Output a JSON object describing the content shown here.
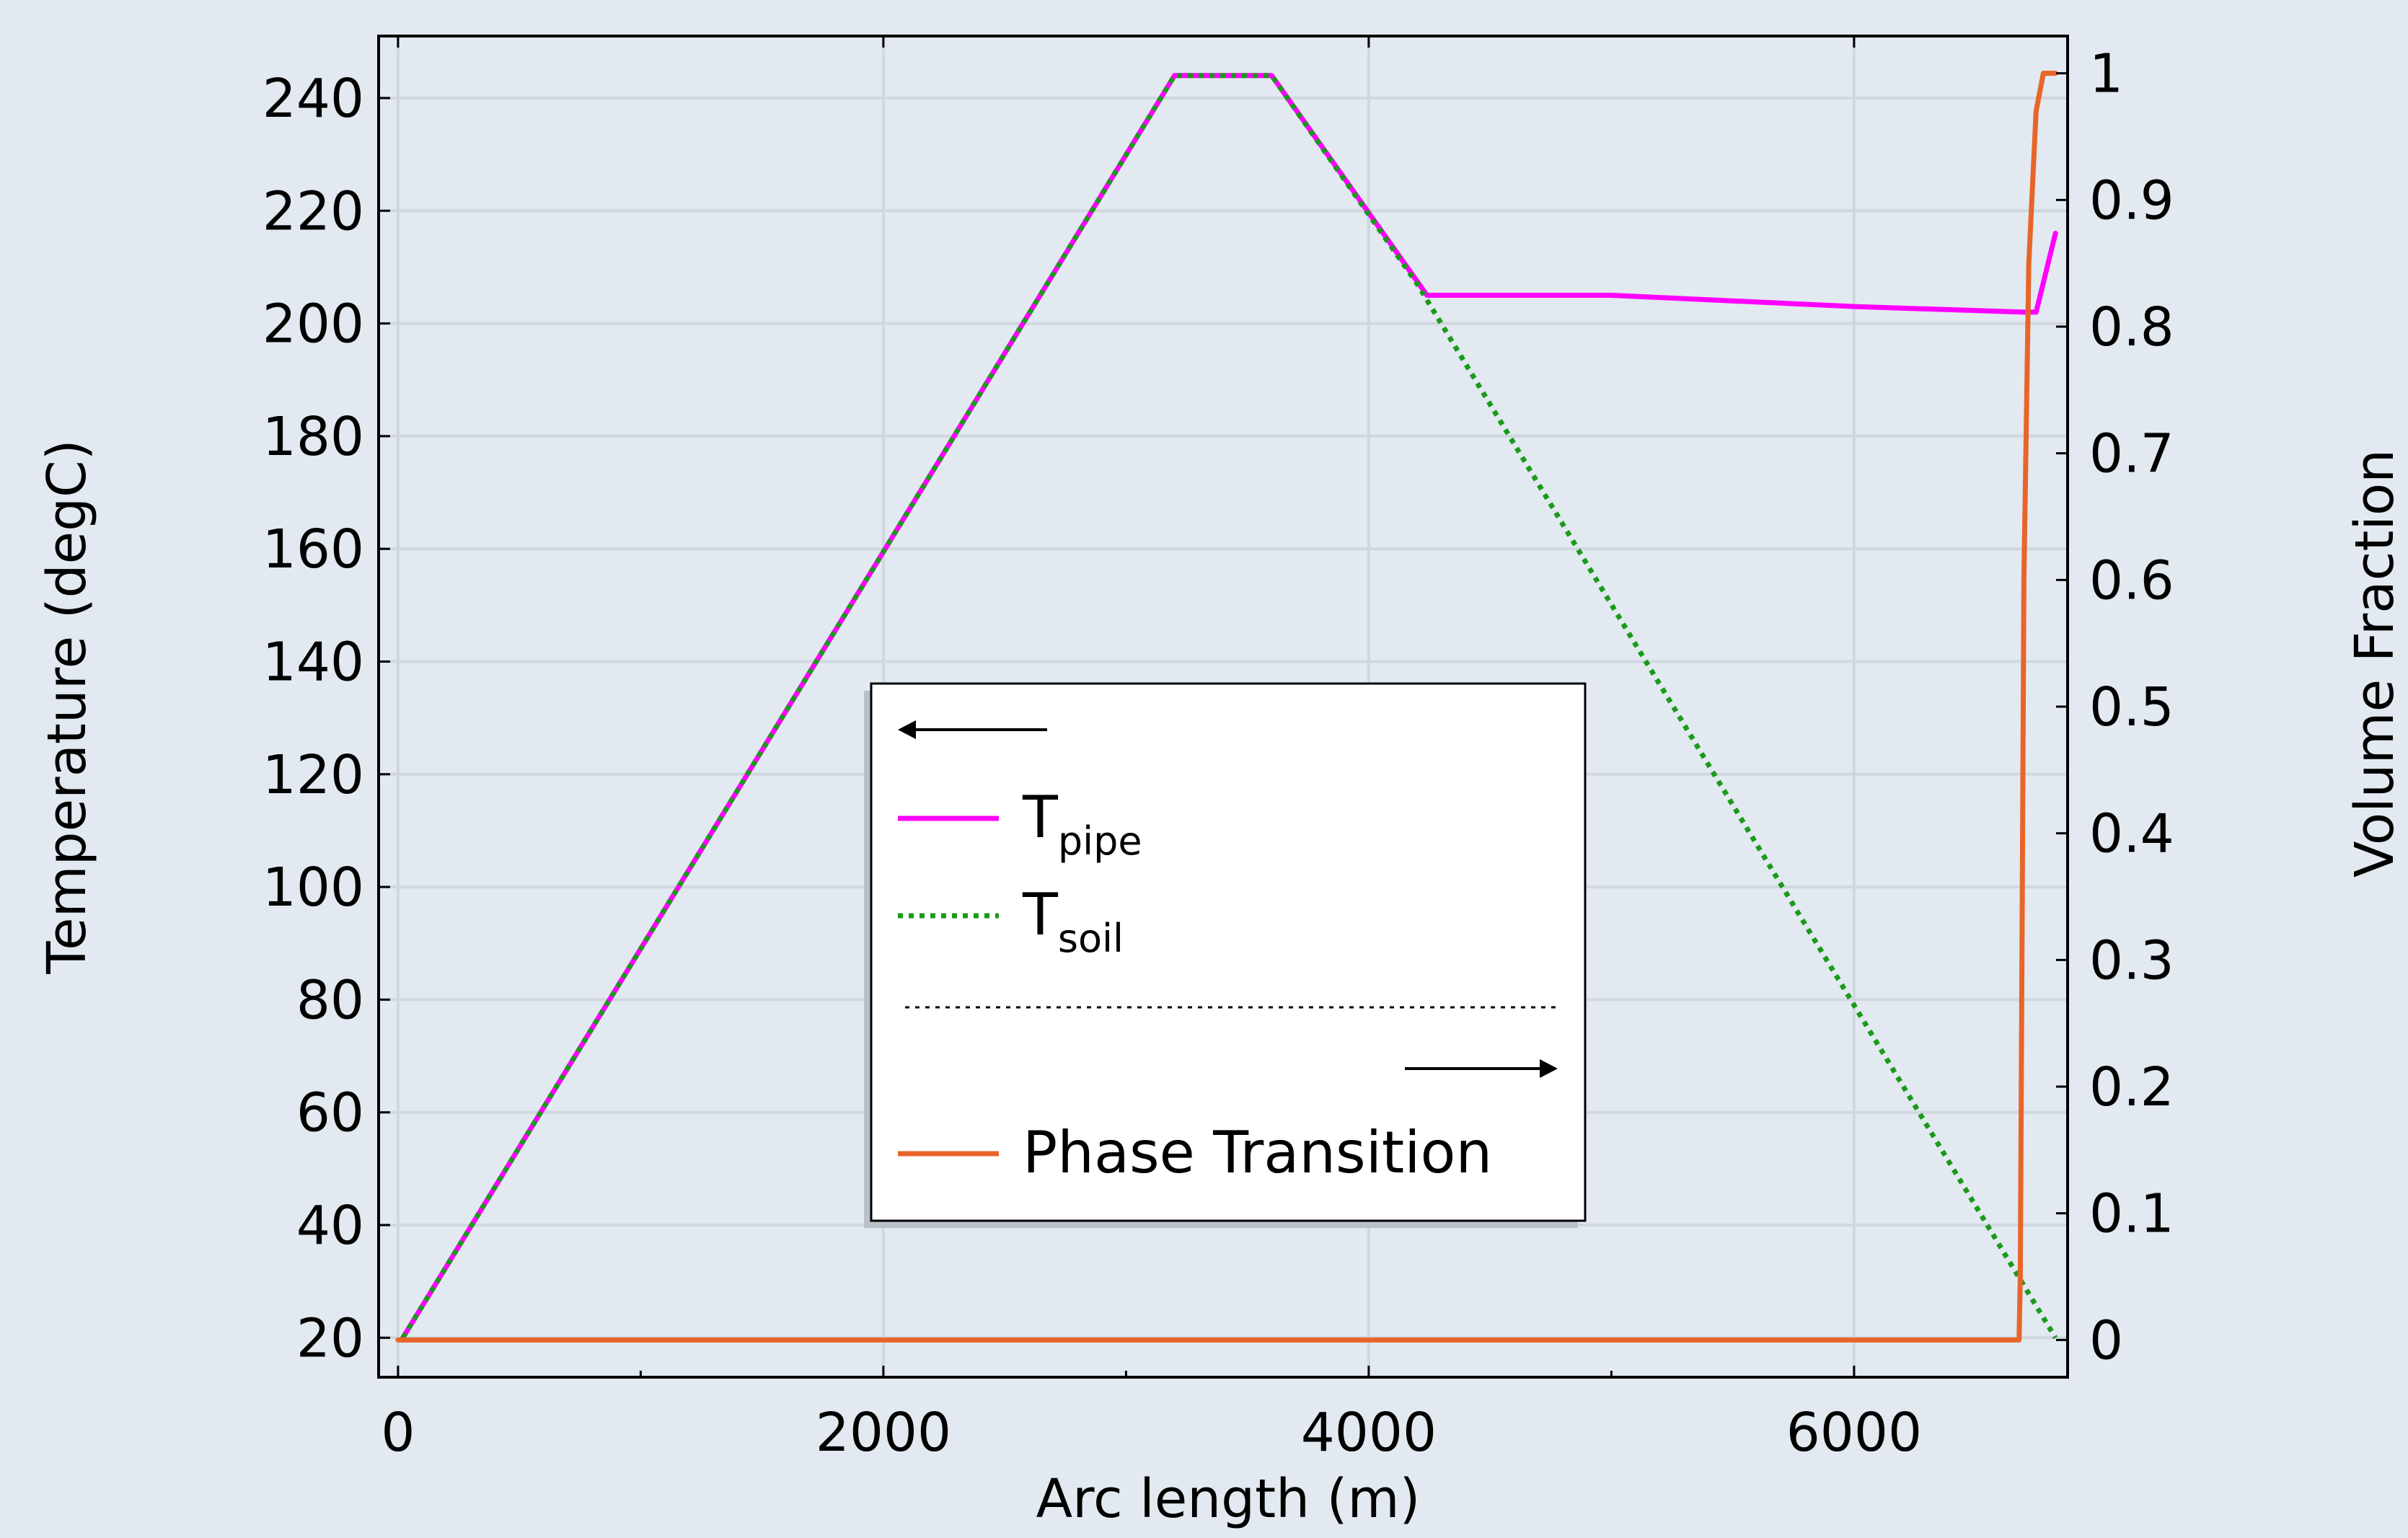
{
  "chart_data": {
    "type": "line",
    "background": "#e2e9f0",
    "grid": true,
    "xlabel": "Arc length (m)",
    "ylabel": "Temperature (degC)",
    "y2label": "Volume Fraction",
    "xlim": [
      -80,
      6880
    ],
    "ylim": [
      13,
      251
    ],
    "y2lim": [
      -0.0294,
      1.0294
    ],
    "xticks": [
      0,
      2000,
      4000,
      6000
    ],
    "xtick_labels": [
      "0",
      "2000",
      "4000",
      "6000"
    ],
    "yticks": [
      20,
      40,
      60,
      80,
      100,
      120,
      140,
      160,
      180,
      200,
      220,
      240
    ],
    "ytick_labels": [
      "20",
      "40",
      "60",
      "80",
      "100",
      "120",
      "140",
      "160",
      "180",
      "200",
      "220",
      "240"
    ],
    "y2ticks": [
      0,
      0.1,
      0.2,
      0.3,
      0.4,
      0.5,
      0.6,
      0.7,
      0.8,
      0.9,
      1
    ],
    "y2tick_labels": [
      "0",
      "0.1",
      "0.2",
      "0.3",
      "0.4",
      "0.5",
      "0.6",
      "0.7",
      "0.8",
      "0.9",
      "1"
    ],
    "legend": {
      "placement": "center",
      "entries": [
        {
          "kind": "arrow-left",
          "label": ""
        },
        {
          "kind": "line",
          "series": 0,
          "label_main": "T",
          "label_sub": "pipe"
        },
        {
          "kind": "line",
          "series": 1,
          "label_main": "T",
          "label_sub": "soil"
        },
        {
          "kind": "separator",
          "label": ""
        },
        {
          "kind": "arrow-right",
          "label": ""
        },
        {
          "kind": "line",
          "series": 2,
          "label_main": "Phase Transition",
          "label_sub": ""
        }
      ]
    },
    "series": [
      {
        "name": "T_pipe",
        "axis": "left",
        "color": "#ff00ff",
        "style": "solid",
        "x": [
          20,
          3200,
          3600,
          4240,
          5000,
          6000,
          6700,
          6750,
          6830
        ],
        "y": [
          20,
          244,
          244,
          205,
          205,
          203,
          202,
          202,
          216
        ]
      },
      {
        "name": "T_soil",
        "axis": "left",
        "color": "#1a9a1a",
        "style": "dotted",
        "x": [
          20,
          3200,
          3600,
          4200,
          6830
        ],
        "y": [
          20,
          244,
          244,
          207,
          20
        ]
      },
      {
        "name": "Phase Transition",
        "axis": "right",
        "color": "#e8652a",
        "style": "solid",
        "x": [
          0,
          6600,
          6680,
          6685,
          6700,
          6720,
          6750,
          6780,
          6800,
          6830
        ],
        "y": [
          0,
          0,
          0,
          0.05,
          0.6,
          0.85,
          0.97,
          1.0,
          1.0,
          1.0
        ]
      }
    ]
  }
}
